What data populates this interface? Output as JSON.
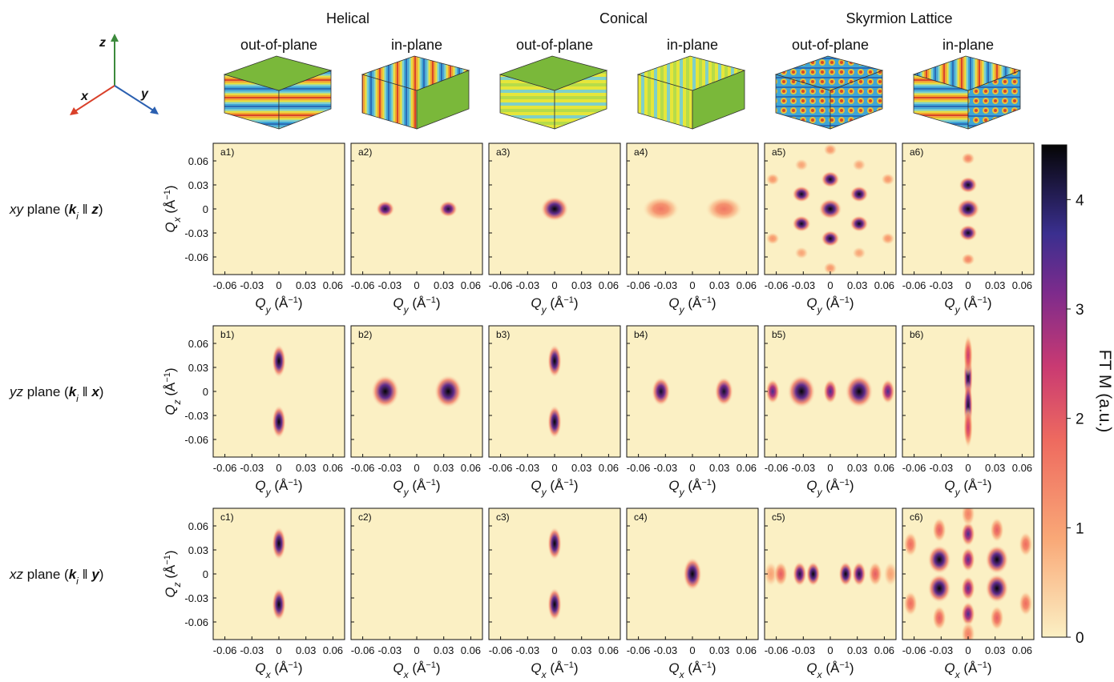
{
  "figure": {
    "groups": [
      "Helical",
      "Conical",
      "Skyrmion Lattice"
    ],
    "columns": [
      "out-of-plane",
      "in-plane",
      "out-of-plane",
      "in-plane",
      "out-of-plane",
      "in-plane"
    ],
    "triad": [
      "x",
      "y",
      "z"
    ],
    "rows": [
      [
        "xy",
        " plane (",
        "k",
        "i",
        " ‖ ",
        "z",
        ")"
      ],
      [
        "yz",
        " plane (",
        "k",
        "i",
        " ‖ ",
        "x",
        ")"
      ],
      [
        "xz",
        " plane (",
        "k",
        "i",
        " ‖ ",
        "y",
        ")"
      ]
    ]
  },
  "chart_data": [
    {
      "type": "heatmap",
      "label": "a1)",
      "xlabel": [
        "Q",
        "y",
        " (Å",
        "−1",
        ")"
      ],
      "ylabel": [
        "Q",
        "x",
        " (Å",
        "−1",
        ")"
      ],
      "xlim": [
        -0.073,
        0.073
      ],
      "ylim": [
        -0.082,
        0.082
      ],
      "xticks": [
        -0.06,
        -0.03,
        0,
        0.03,
        0.06
      ],
      "yticks": [
        -0.06,
        -0.03,
        0,
        0.03,
        0.06
      ],
      "spots": {
        "x": [],
        "y": [],
        "values": [],
        "sx": [],
        "sy": []
      }
    },
    {
      "type": "heatmap",
      "label": "a2)",
      "xlabel": [
        "Q",
        "y",
        " (Å",
        "−1",
        ")"
      ],
      "ylabel": [
        "Q",
        "x",
        " (Å",
        "−1",
        ")"
      ],
      "xlim": [
        -0.073,
        0.073
      ],
      "ylim": [
        -0.082,
        0.082
      ],
      "xticks": [
        -0.06,
        -0.03,
        0,
        0.03,
        0.06
      ],
      "yticks": [
        -0.06,
        -0.03,
        0,
        0.03,
        0.06
      ],
      "spots": {
        "x": [
          -0.035,
          0.035
        ],
        "y": [
          0,
          0
        ],
        "values": [
          4.2,
          4.2
        ],
        "sx": [
          0.004,
          0.004
        ],
        "sy": [
          0.004,
          0.004
        ]
      }
    },
    {
      "type": "heatmap",
      "label": "a3)",
      "xlabel": [
        "Q",
        "y",
        " (Å",
        "−1",
        ")"
      ],
      "ylabel": [
        "Q",
        "x",
        " (Å",
        "−1",
        ")"
      ],
      "xlim": [
        -0.073,
        0.073
      ],
      "ylim": [
        -0.082,
        0.082
      ],
      "xticks": [
        -0.06,
        -0.03,
        0,
        0.03,
        0.06
      ],
      "yticks": [
        -0.06,
        -0.03,
        0,
        0.03,
        0.06
      ],
      "spots": {
        "x": [
          0
        ],
        "y": [
          0
        ],
        "values": [
          4.5
        ],
        "sx": [
          0.006
        ],
        "sy": [
          0.006
        ]
      }
    },
    {
      "type": "heatmap",
      "label": "a4)",
      "xlabel": [
        "Q",
        "y",
        " (Å",
        "−1",
        ")"
      ],
      "ylabel": [
        "Q",
        "x",
        " (Å",
        "−1",
        ")"
      ],
      "xlim": [
        -0.073,
        0.073
      ],
      "ylim": [
        -0.082,
        0.082
      ],
      "xticks": [
        -0.06,
        -0.03,
        0,
        0.03,
        0.06
      ],
      "yticks": [
        -0.06,
        -0.03,
        0,
        0.03,
        0.06
      ],
      "spots": {
        "x": [
          -0.035,
          0.035
        ],
        "y": [
          0,
          0
        ],
        "values": [
          1.6,
          1.6
        ],
        "sx": [
          0.008,
          0.008
        ],
        "sy": [
          0.006,
          0.006
        ]
      }
    },
    {
      "type": "heatmap",
      "label": "a5)",
      "xlabel": [
        "Q",
        "y",
        " (Å",
        "−1",
        ")"
      ],
      "ylabel": [
        "Q",
        "x",
        " (Å",
        "−1",
        ")"
      ],
      "xlim": [
        -0.073,
        0.073
      ],
      "ylim": [
        -0.082,
        0.082
      ],
      "xticks": [
        -0.06,
        -0.03,
        0,
        0.03,
        0.06
      ],
      "yticks": [
        -0.06,
        -0.03,
        0,
        0.03,
        0.06
      ],
      "spots": {
        "x": [
          0,
          0,
          0,
          0.032,
          0.032,
          -0.032,
          -0.032,
          0,
          0,
          0.064,
          0.064,
          -0.064,
          -0.064,
          0.032,
          0.032,
          -0.032,
          -0.032
        ],
        "y": [
          0,
          0.037,
          -0.037,
          0.0185,
          -0.0185,
          0.0185,
          -0.0185,
          0.074,
          -0.074,
          0.037,
          -0.037,
          0.037,
          -0.037,
          0.055,
          -0.055,
          0.055,
          -0.055
        ],
        "values": [
          4.5,
          4.4,
          4.4,
          4.4,
          4.4,
          4.4,
          4.4,
          1.2,
          1.2,
          1.2,
          1.2,
          1.2,
          1.2,
          1,
          1,
          1,
          1
        ],
        "sx": [
          0.005,
          0.004,
          0.004,
          0.004,
          0.004,
          0.004,
          0.004,
          0.003,
          0.003,
          0.003,
          0.003,
          0.003,
          0.003,
          0.003,
          0.003,
          0.003,
          0.003
        ],
        "sy": [
          0.005,
          0.004,
          0.004,
          0.004,
          0.004,
          0.004,
          0.004,
          0.003,
          0.003,
          0.003,
          0.003,
          0.003,
          0.003,
          0.003,
          0.003,
          0.003,
          0.003
        ]
      }
    },
    {
      "type": "heatmap",
      "label": "a6)",
      "xlabel": [
        "Q",
        "y",
        " (Å",
        "−1",
        ")"
      ],
      "ylabel": [
        "Q",
        "x",
        " (Å",
        "−1",
        ")"
      ],
      "xlim": [
        -0.073,
        0.073
      ],
      "ylim": [
        -0.082,
        0.082
      ],
      "xticks": [
        -0.06,
        -0.03,
        0,
        0.03,
        0.06
      ],
      "yticks": [
        -0.06,
        -0.03,
        0,
        0.03,
        0.06
      ],
      "spots": {
        "x": [
          0,
          0,
          0,
          0,
          0
        ],
        "y": [
          0,
          0.03,
          -0.03,
          0.063,
          -0.063
        ],
        "values": [
          4.5,
          4.4,
          4.4,
          1.5,
          1.5
        ],
        "sx": [
          0.005,
          0.004,
          0.004,
          0.003,
          0.003
        ],
        "sy": [
          0.005,
          0.004,
          0.004,
          0.003,
          0.003
        ]
      }
    },
    {
      "type": "heatmap",
      "label": "b1)",
      "xlabel": [
        "Q",
        "y",
        " (Å",
        "−1",
        ")"
      ],
      "ylabel": [
        "Q",
        "z",
        " (Å",
        "−1",
        ")"
      ],
      "xlim": [
        -0.073,
        0.073
      ],
      "ylim": [
        -0.082,
        0.082
      ],
      "xticks": [
        -0.06,
        -0.03,
        0,
        0.03,
        0.06
      ],
      "yticks": [
        -0.06,
        -0.03,
        0,
        0.03,
        0.06
      ],
      "spots": {
        "x": [
          0,
          0
        ],
        "y": [
          0.038,
          -0.038
        ],
        "values": [
          4.5,
          4.5
        ],
        "sx": [
          0.003,
          0.003
        ],
        "sy": [
          0.008,
          0.008
        ]
      }
    },
    {
      "type": "heatmap",
      "label": "b2)",
      "xlabel": [
        "Q",
        "y",
        " (Å",
        "−1",
        ")"
      ],
      "ylabel": [
        "Q",
        "z",
        " (Å",
        "−1",
        ")"
      ],
      "xlim": [
        -0.073,
        0.073
      ],
      "ylim": [
        -0.082,
        0.082
      ],
      "xticks": [
        -0.06,
        -0.03,
        0,
        0.03,
        0.06
      ],
      "yticks": [
        -0.06,
        -0.03,
        0,
        0.03,
        0.06
      ],
      "spots": {
        "x": [
          -0.035,
          0.035
        ],
        "y": [
          0,
          0
        ],
        "values": [
          4.5,
          4.5
        ],
        "sx": [
          0.006,
          0.006
        ],
        "sy": [
          0.008,
          0.008
        ]
      }
    },
    {
      "type": "heatmap",
      "label": "b3)",
      "xlabel": [
        "Q",
        "y",
        " (Å",
        "−1",
        ")"
      ],
      "ylabel": [
        "Q",
        "z",
        " (Å",
        "−1",
        ")"
      ],
      "xlim": [
        -0.073,
        0.073
      ],
      "ylim": [
        -0.082,
        0.082
      ],
      "xticks": [
        -0.06,
        -0.03,
        0,
        0.03,
        0.06
      ],
      "yticks": [
        -0.06,
        -0.03,
        0,
        0.03,
        0.06
      ],
      "spots": {
        "x": [
          0,
          0
        ],
        "y": [
          0.038,
          -0.038
        ],
        "values": [
          4.5,
          4.5
        ],
        "sx": [
          0.003,
          0.003
        ],
        "sy": [
          0.008,
          0.008
        ]
      }
    },
    {
      "type": "heatmap",
      "label": "b4)",
      "xlabel": [
        "Q",
        "y",
        " (Å",
        "−1",
        ")"
      ],
      "ylabel": [
        "Q",
        "z",
        " (Å",
        "−1",
        ")"
      ],
      "xlim": [
        -0.073,
        0.073
      ],
      "ylim": [
        -0.082,
        0.082
      ],
      "xticks": [
        -0.06,
        -0.03,
        0,
        0.03,
        0.06
      ],
      "yticks": [
        -0.06,
        -0.03,
        0,
        0.03,
        0.06
      ],
      "spots": {
        "x": [
          -0.035,
          0.035
        ],
        "y": [
          0,
          0
        ],
        "values": [
          4.3,
          4.3
        ],
        "sx": [
          0.004,
          0.004
        ],
        "sy": [
          0.007,
          0.007
        ]
      }
    },
    {
      "type": "heatmap",
      "label": "b5)",
      "xlabel": [
        "Q",
        "y",
        " (Å",
        "−1",
        ")"
      ],
      "ylabel": [
        "Q",
        "z",
        " (Å",
        "−1",
        ")"
      ],
      "xlim": [
        -0.073,
        0.073
      ],
      "ylim": [
        -0.082,
        0.082
      ],
      "xticks": [
        -0.06,
        -0.03,
        0,
        0.03,
        0.06
      ],
      "yticks": [
        -0.06,
        -0.03,
        0,
        0.03,
        0.06
      ],
      "spots": {
        "x": [
          -0.064,
          -0.032,
          0,
          0.032,
          0.064
        ],
        "y": [
          0,
          0,
          0,
          0,
          0
        ],
        "values": [
          3.6,
          4.5,
          3.6,
          4.5,
          3.6
        ],
        "sx": [
          0.003,
          0.006,
          0.003,
          0.006,
          0.003
        ],
        "sy": [
          0.006,
          0.008,
          0.006,
          0.008,
          0.006
        ]
      }
    },
    {
      "type": "heatmap",
      "label": "b6)",
      "xlabel": [
        "Q",
        "y",
        " (Å",
        "−1",
        ")"
      ],
      "ylabel": [
        "Q",
        "z",
        " (Å",
        "−1",
        ")"
      ],
      "xlim": [
        -0.073,
        0.073
      ],
      "ylim": [
        -0.082,
        0.082
      ],
      "xticks": [
        -0.06,
        -0.03,
        0,
        0.03,
        0.06
      ],
      "yticks": [
        -0.06,
        -0.03,
        0,
        0.03,
        0.06
      ],
      "spots": {
        "x": [
          0,
          0,
          0,
          0
        ],
        "y": [
          0.018,
          -0.018,
          0.045,
          -0.045
        ],
        "values": [
          4.3,
          4.3,
          2.5,
          2.5
        ],
        "sx": [
          0.002,
          0.002,
          0.002,
          0.002
        ],
        "sy": [
          0.012,
          0.012,
          0.01,
          0.01
        ]
      }
    },
    {
      "type": "heatmap",
      "label": "c1)",
      "xlabel": [
        "Q",
        "x",
        " (Å",
        "−1",
        ")"
      ],
      "ylabel": [
        "Q",
        "z",
        " (Å",
        "−1",
        ")"
      ],
      "xlim": [
        -0.073,
        0.073
      ],
      "ylim": [
        -0.082,
        0.082
      ],
      "xticks": [
        -0.06,
        -0.03,
        0,
        0.03,
        0.06
      ],
      "yticks": [
        -0.06,
        -0.03,
        0,
        0.03,
        0.06
      ],
      "spots": {
        "x": [
          0,
          0
        ],
        "y": [
          0.038,
          -0.038
        ],
        "values": [
          4.5,
          4.5
        ],
        "sx": [
          0.003,
          0.003
        ],
        "sy": [
          0.008,
          0.008
        ]
      }
    },
    {
      "type": "heatmap",
      "label": "c2)",
      "xlabel": [
        "Q",
        "x",
        " (Å",
        "−1",
        ")"
      ],
      "ylabel": [
        "Q",
        "z",
        " (Å",
        "−1",
        ")"
      ],
      "xlim": [
        -0.073,
        0.073
      ],
      "ylim": [
        -0.082,
        0.082
      ],
      "xticks": [
        -0.06,
        -0.03,
        0,
        0.03,
        0.06
      ],
      "yticks": [
        -0.06,
        -0.03,
        0,
        0.03,
        0.06
      ],
      "spots": {
        "x": [],
        "y": [],
        "values": [],
        "sx": [],
        "sy": []
      }
    },
    {
      "type": "heatmap",
      "label": "c3)",
      "xlabel": [
        "Q",
        "x",
        " (Å",
        "−1",
        ")"
      ],
      "ylabel": [
        "Q",
        "z",
        " (Å",
        "−1",
        ")"
      ],
      "xlim": [
        -0.073,
        0.073
      ],
      "ylim": [
        -0.082,
        0.082
      ],
      "xticks": [
        -0.06,
        -0.03,
        0,
        0.03,
        0.06
      ],
      "yticks": [
        -0.06,
        -0.03,
        0,
        0.03,
        0.06
      ],
      "spots": {
        "x": [
          0,
          0
        ],
        "y": [
          0.038,
          -0.038
        ],
        "values": [
          4.5,
          4.5
        ],
        "sx": [
          0.003,
          0.003
        ],
        "sy": [
          0.008,
          0.008
        ]
      }
    },
    {
      "type": "heatmap",
      "label": "c4)",
      "xlabel": [
        "Q",
        "x",
        " (Å",
        "−1",
        ")"
      ],
      "ylabel": [
        "Q",
        "z",
        " (Å",
        "−1",
        ")"
      ],
      "xlim": [
        -0.073,
        0.073
      ],
      "ylim": [
        -0.082,
        0.082
      ],
      "xticks": [
        -0.06,
        -0.03,
        0,
        0.03,
        0.06
      ],
      "yticks": [
        -0.06,
        -0.03,
        0,
        0.03,
        0.06
      ],
      "spots": {
        "x": [
          0
        ],
        "y": [
          0
        ],
        "values": [
          4.5
        ],
        "sx": [
          0.004
        ],
        "sy": [
          0.008
        ]
      }
    },
    {
      "type": "heatmap",
      "label": "c5)",
      "xlabel": [
        "Q",
        "x",
        " (Å",
        "−1",
        ")"
      ],
      "ylabel": [
        "Q",
        "z",
        " (Å",
        "−1",
        ")"
      ],
      "xlim": [
        -0.073,
        0.073
      ],
      "ylim": [
        -0.082,
        0.082
      ],
      "xticks": [
        -0.06,
        -0.03,
        0,
        0.03,
        0.06
      ],
      "yticks": [
        -0.06,
        -0.03,
        0,
        0.03,
        0.06
      ],
      "spots": {
        "x": [
          -0.066,
          -0.055,
          -0.034,
          -0.019,
          0.017,
          0.032,
          0.05,
          0.067
        ],
        "y": [
          0,
          0,
          0,
          0,
          0,
          0,
          0,
          0
        ],
        "values": [
          1,
          2,
          4.2,
          4.5,
          4.5,
          4.2,
          2,
          1
        ],
        "sx": [
          0.003,
          0.003,
          0.003,
          0.003,
          0.003,
          0.003,
          0.003,
          0.003
        ],
        "sy": [
          0.006,
          0.006,
          0.006,
          0.006,
          0.006,
          0.006,
          0.006,
          0.006
        ]
      }
    },
    {
      "type": "heatmap",
      "label": "c6)",
      "xlabel": [
        "Q",
        "x",
        " (Å",
        "−1",
        ")"
      ],
      "ylabel": [
        "Q",
        "z",
        " (Å",
        "−1",
        ")"
      ],
      "xlim": [
        -0.073,
        0.073
      ],
      "ylim": [
        -0.082,
        0.082
      ],
      "xticks": [
        -0.06,
        -0.03,
        0,
        0.03,
        0.06
      ],
      "yticks": [
        -0.06,
        -0.03,
        0,
        0.03,
        0.06
      ],
      "spots": {
        "x": [
          -0.032,
          0.032,
          -0.032,
          0.032,
          0,
          0,
          0,
          0,
          -0.032,
          0.032,
          -0.032,
          0.032,
          -0.064,
          0.064,
          -0.064,
          0.064,
          0,
          0
        ],
        "y": [
          0.018,
          0.018,
          -0.018,
          -0.018,
          0.018,
          -0.018,
          0.05,
          -0.05,
          0.055,
          0.055,
          -0.055,
          -0.055,
          0.037,
          0.037,
          -0.037,
          -0.037,
          0.075,
          -0.075
        ],
        "values": [
          4.5,
          4.5,
          4.5,
          4.5,
          3.5,
          3.5,
          3.6,
          3.6,
          2,
          2,
          2,
          2,
          1.8,
          1.8,
          1.8,
          1.8,
          1.5,
          1.5
        ],
        "sx": [
          0.005,
          0.005,
          0.005,
          0.005,
          0.003,
          0.003,
          0.003,
          0.003,
          0.003,
          0.003,
          0.003,
          0.003,
          0.003,
          0.003,
          0.003,
          0.003,
          0.003,
          0.003
        ],
        "sy": [
          0.007,
          0.007,
          0.007,
          0.007,
          0.006,
          0.006,
          0.006,
          0.006,
          0.006,
          0.006,
          0.006,
          0.006,
          0.006,
          0.006,
          0.006,
          0.006,
          0.006,
          0.006
        ]
      }
    },
    {
      "type": "colorbar",
      "label": "FT M (a.u.)",
      "ylim": [
        0,
        4.5
      ],
      "yticks": [
        0,
        1,
        2,
        3,
        4
      ]
    }
  ]
}
